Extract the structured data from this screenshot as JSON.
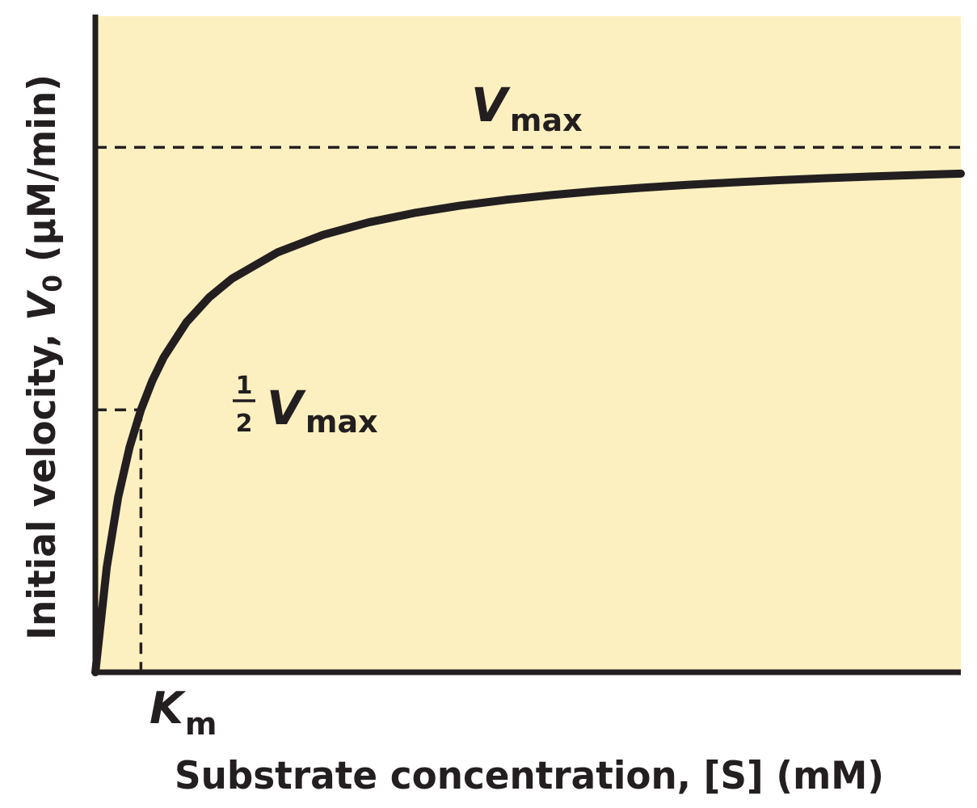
{
  "chart_data": {
    "type": "line",
    "title": "",
    "xlabel": "Substrate concentration, [S] (mM)",
    "ylabel": "Initial velocity, V0 (μM/min)",
    "xlim": [
      0,
      19
    ],
    "ylim": [
      0,
      1.25
    ],
    "grid": false,
    "legend": "none",
    "colors": {
      "background": "#fdf0c0",
      "ink": "#231f20"
    },
    "series": [
      {
        "x": [
          0,
          0.25,
          0.5,
          0.75,
          1,
          1.25,
          1.5,
          2,
          2.5,
          3,
          4,
          5,
          6,
          7,
          8,
          9,
          10,
          11,
          12,
          13,
          14,
          15,
          16,
          17,
          18,
          19
        ],
        "y": [
          0,
          0.2,
          0.33333,
          0.42857,
          0.5,
          0.55556,
          0.6,
          0.66667,
          0.71429,
          0.75,
          0.8,
          0.83333,
          0.85714,
          0.875,
          0.88889,
          0.9,
          0.90909,
          0.91667,
          0.92308,
          0.92857,
          0.93333,
          0.9375,
          0.94118,
          0.94444,
          0.94737,
          0.95
        ]
      }
    ],
    "reference_lines": [
      {
        "orientation": "horizontal",
        "y": 1.0,
        "style": "dashed"
      },
      {
        "orientation": "horizontal",
        "y": 0.5,
        "style": "dashed",
        "x_end": 1
      },
      {
        "orientation": "vertical",
        "x": 1,
        "style": "dashed",
        "y_end": 0.5
      }
    ],
    "annotations": {
      "vmax": {
        "main": "V",
        "sub": "max"
      },
      "half_vmax": {
        "num": "1",
        "den": "2",
        "main": "V",
        "sub": "max"
      },
      "km": {
        "main": "K",
        "sub": "m"
      }
    },
    "ylabel_parts": {
      "text": "Initial velocity, ",
      "var": "V",
      "sub": "0",
      "unit": " (μM/min)"
    },
    "xlabel_parts": {
      "text": "Substrate concentration, [S] (mM)"
    }
  }
}
